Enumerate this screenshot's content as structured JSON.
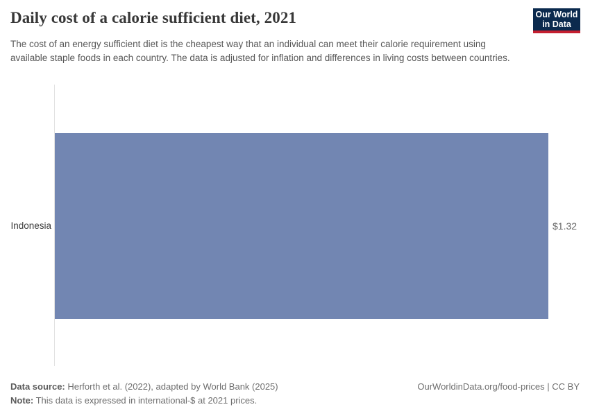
{
  "header": {
    "title": "Daily cost of a calorie sufficient diet, 2021",
    "subtitle": "The cost of an energy sufficient diet is the cheapest way that an individual can meet their calorie requirement using available staple foods in each country. The data is adjusted for inflation and differences in living costs between countries."
  },
  "logo": {
    "line1": "Our World",
    "line2": "in Data"
  },
  "chart_data": {
    "type": "bar",
    "orientation": "horizontal",
    "title": "Daily cost of a calorie sufficient diet, 2021",
    "categories": [
      "Indonesia"
    ],
    "values": [
      1.32
    ],
    "value_labels": [
      "$1.32"
    ],
    "unit": "international-$ at 2021 prices",
    "xlim": [
      0,
      1.32
    ],
    "grid": false,
    "legend": "none"
  },
  "footer": {
    "data_source_label": "Data source:",
    "data_source_text": " Herforth et al. (2022), adapted by World Bank (2025)",
    "note_label": "Note:",
    "note_text": " This data is expressed in international-$ at 2021 prices.",
    "credit": "OurWorldinData.org/food-prices | CC BY"
  },
  "colors": {
    "bar": "#7286b2",
    "logo_navy": "#0b2a4e",
    "logo_red": "#c51f30",
    "axis": "#e2e2e2"
  }
}
